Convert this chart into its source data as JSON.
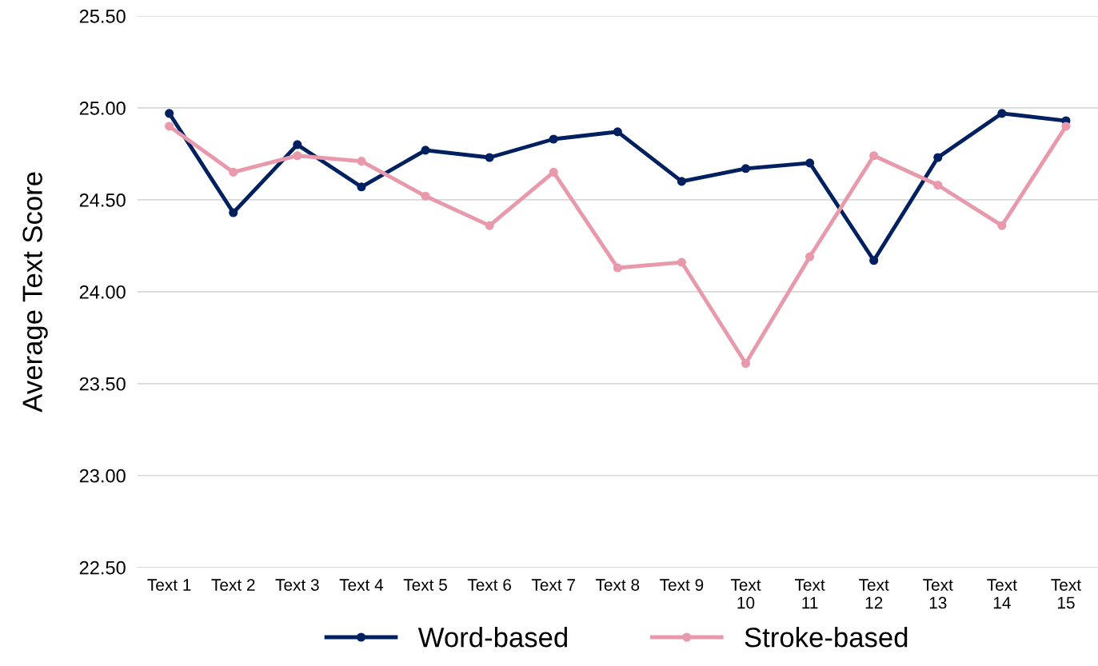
{
  "chart_data": {
    "type": "line",
    "ylabel": "Average Text Score",
    "categories": [
      "Text 1",
      "Text 2",
      "Text 3",
      "Text 4",
      "Text 5",
      "Text 6",
      "Text 7",
      "Text 8",
      "Text 9",
      "Text 10",
      "Text 11",
      "Text 12",
      "Text 13",
      "Text 14",
      "Text 15"
    ],
    "series": [
      {
        "name": "Word-based",
        "color": "#002060",
        "values": [
          24.97,
          24.43,
          24.8,
          24.57,
          24.77,
          24.73,
          24.83,
          24.87,
          24.6,
          24.67,
          24.7,
          24.17,
          24.73,
          24.97,
          24.93
        ]
      },
      {
        "name": "Stroke-based",
        "color": "#e899ab",
        "values": [
          24.9,
          24.65,
          24.74,
          24.71,
          24.52,
          24.36,
          24.65,
          24.13,
          24.16,
          23.61,
          24.19,
          24.74,
          24.58,
          24.36,
          24.9
        ]
      }
    ],
    "ylim": [
      22.5,
      25.5
    ],
    "yticks": [
      {
        "value": 22.5,
        "label": "22.50"
      },
      {
        "value": 23.0,
        "label": "23.00"
      },
      {
        "value": 23.5,
        "label": "23.50"
      },
      {
        "value": 24.0,
        "label": "24.00"
      },
      {
        "value": 24.5,
        "label": "24.50"
      },
      {
        "value": 25.0,
        "label": "25.00"
      },
      {
        "value": 25.5,
        "label": "25.50"
      }
    ],
    "grid": "y",
    "legend": "bottom",
    "marker": "circle",
    "line_style": "solid"
  }
}
